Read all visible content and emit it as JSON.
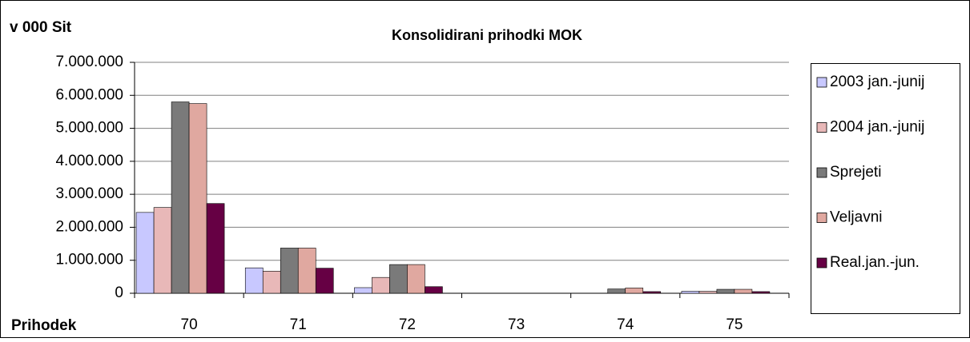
{
  "chart_data": {
    "type": "bar",
    "title": "Konsolidirani prihodki MOK",
    "y_label": "v 000 Sit",
    "x_label": "Prihodek",
    "categories": [
      "70",
      "71",
      "72",
      "73",
      "74",
      "75"
    ],
    "series": [
      {
        "name": "2003 jan.-junij",
        "color": "#c8c8ff",
        "values": [
          2450000,
          770000,
          170000,
          0,
          0,
          60000
        ]
      },
      {
        "name": "2004 jan.-junij",
        "color": "#e8b8b8",
        "values": [
          2600000,
          670000,
          480000,
          0,
          0,
          60000
        ]
      },
      {
        "name": "Sprejeti",
        "color": "#7a7a7a",
        "values": [
          5800000,
          1370000,
          870000,
          0,
          130000,
          120000
        ]
      },
      {
        "name": "Veljavni",
        "color": "#e0a8a0",
        "values": [
          5750000,
          1370000,
          870000,
          0,
          160000,
          120000
        ]
      },
      {
        "name": "Real.jan.-jun.",
        "color": "#660044",
        "values": [
          2720000,
          760000,
          200000,
          0,
          50000,
          50000
        ]
      }
    ],
    "ylim": [
      0,
      7000000
    ],
    "yticks": [
      0,
      {
        "value": 1000000,
        "label": "1.000.000"
      },
      {
        "value": 2000000,
        "label": "2.000.000"
      },
      {
        "value": 3000000,
        "label": "3.000.000"
      },
      {
        "value": 4000000,
        "label": "4.000.000"
      },
      {
        "value": 5000000,
        "label": "5.000.000"
      },
      {
        "value": 6000000,
        "label": "6.000.000"
      },
      {
        "value": 7000000,
        "label": "7.000.000"
      }
    ],
    "grid": true,
    "legend": "right"
  }
}
